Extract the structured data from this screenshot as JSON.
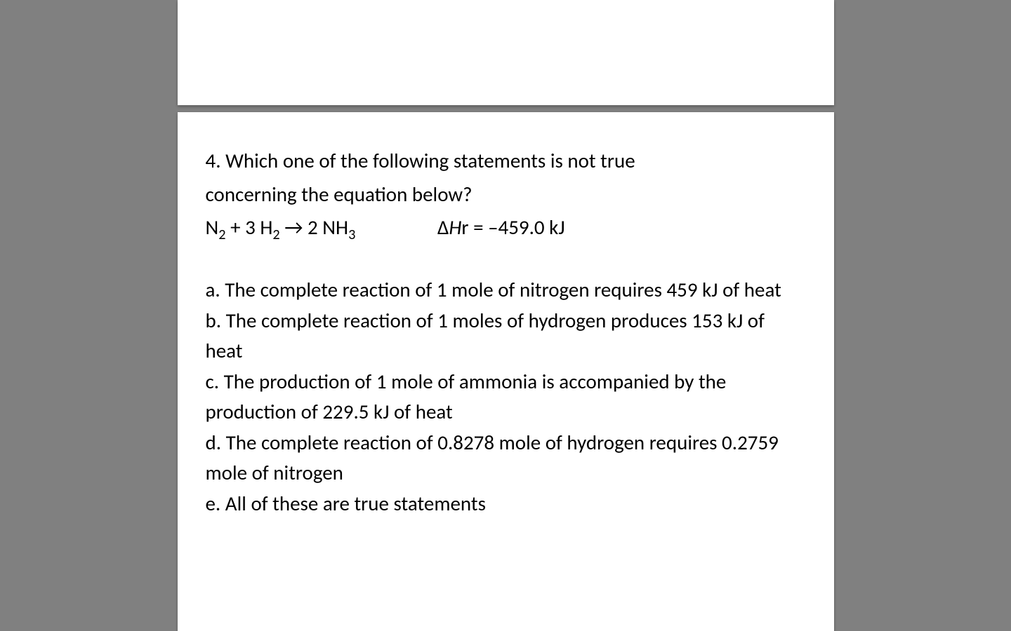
{
  "question": {
    "number": "4.",
    "stem_line1": "4. Which one of the following statements is not true",
    "stem_line2": "concerning the equation below?",
    "equation": {
      "reaction_prefix": "N",
      "sub1": "2",
      "plus": " + 3 H",
      "sub2": "2",
      "arrow": " → 2 NH",
      "sub3": "3",
      "delta_label": "Δ",
      "h_italic": "H",
      "r_suffix": "r = –459.0 kJ"
    },
    "options": {
      "a": "a. The complete reaction of 1 mole of nitrogen requires 459 kJ of heat",
      "b": "b. The complete reaction of 1 moles of hydrogen produces 153 kJ of heat",
      "c": "c. The production of 1 mole of ammonia is accompanied by the production of 229.5 kJ of heat",
      "d": "d. The complete reaction of 0.8278 mole of hydrogen requires 0.2759 mole of nitrogen",
      "e": "e. All of these are true statements"
    }
  },
  "colors": {
    "background": "#808080",
    "slide_bg": "#ffffff",
    "text": "#000000"
  },
  "typography": {
    "font_family": "Calibri, Arial, sans-serif",
    "question_fontsize": 29,
    "line_height": 1.5
  }
}
